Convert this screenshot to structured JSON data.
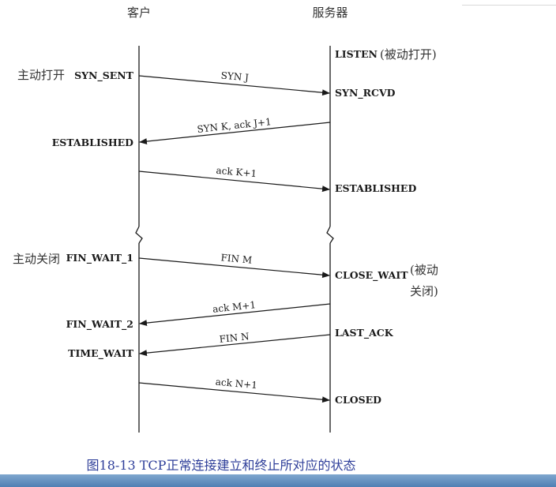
{
  "headers": {
    "client": "客户",
    "server": "服务器"
  },
  "side_notes": {
    "active_open": "主动打开",
    "active_close": "主动关闭",
    "passive_open": "(被动打开)",
    "passive_close_1": "(被动",
    "passive_close_2": "关闭)"
  },
  "client_states": {
    "syn_sent": "SYN_SENT",
    "established": "ESTABLISHED",
    "fin_wait_1": "FIN_WAIT_1",
    "fin_wait_2": "FIN_WAIT_2",
    "time_wait": "TIME_WAIT"
  },
  "server_states": {
    "listen": "LISTEN",
    "syn_rcvd": "SYN_RCVD",
    "established": "ESTABLISHED",
    "close_wait": "CLOSE_WAIT",
    "last_ack": "LAST_ACK",
    "closed": "CLOSED"
  },
  "messages": {
    "syn_j": "SYN J",
    "syn_k_ack": "SYN K, ack J+1",
    "ack_k": "ack K+1",
    "fin_m": "FIN M",
    "ack_m": "ack M+1",
    "fin_n": "FIN N",
    "ack_n": "ack N+1"
  },
  "caption": "图18-13   TCP正常连接建立和终止所对应的状态"
}
